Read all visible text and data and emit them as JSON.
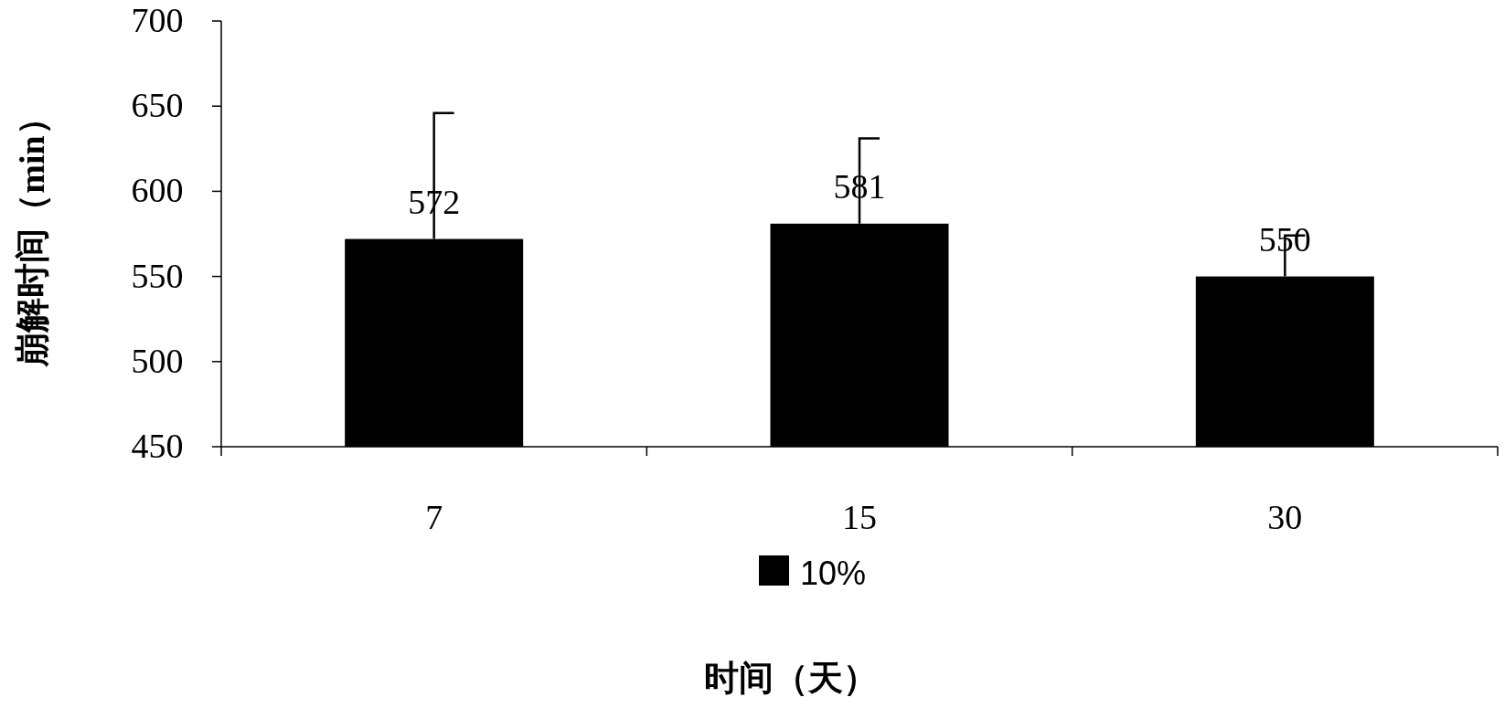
{
  "chart_data": {
    "type": "bar",
    "xlabel": "时间（天）",
    "ylabel": "崩解时间（min）",
    "categories": [
      "7",
      "15",
      "30"
    ],
    "series": [
      {
        "name": "10%",
        "color": "#000000",
        "values": [
          572,
          581,
          550
        ],
        "errors": [
          [
            572,
            646
          ],
          [
            581,
            631
          ],
          [
            550,
            574
          ]
        ]
      }
    ],
    "ylim": [
      450,
      700
    ],
    "yticks": [
      450,
      500,
      550,
      600,
      650,
      700
    ],
    "data_labels": true,
    "legend": "bottom",
    "grid": false
  }
}
